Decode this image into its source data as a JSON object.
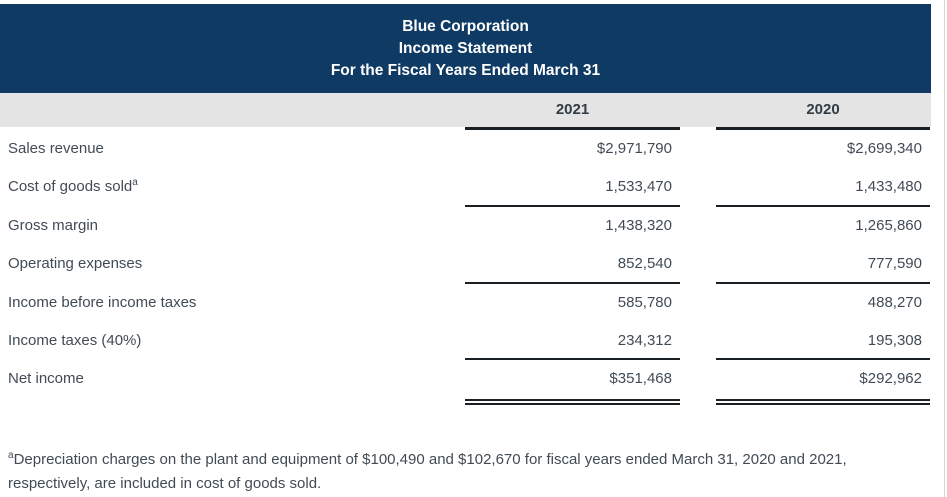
{
  "header": {
    "title_lines": [
      "Blue Corporation",
      "Income Statement",
      "For the Fiscal Years Ended March 31"
    ]
  },
  "table": {
    "columns": [
      "2021",
      "2020"
    ],
    "rows": [
      {
        "label": "Sales revenue",
        "y2021": "$2,971,790",
        "y2020": "$2,699,340"
      },
      {
        "label": "Cost of goods sold",
        "superscript": "a",
        "y2021": "1,533,470",
        "y2020": "1,433,480"
      },
      {
        "label": "Gross margin",
        "y2021": "1,438,320",
        "y2020": "1,265,860"
      },
      {
        "label": "Operating expenses",
        "y2021": "852,540",
        "y2020": "777,590"
      },
      {
        "label": "Income before income taxes",
        "y2021": "585,780",
        "y2020": "488,270"
      },
      {
        "label": "Income taxes (40%)",
        "y2021": "234,312",
        "y2020": "195,308"
      },
      {
        "label": "Net income",
        "y2021": "$351,468",
        "y2020": "$292,962"
      }
    ]
  },
  "footnote": {
    "superscript": "a",
    "text": "Depreciation charges on the plant and equipment of $100,490 and $102,670 for fiscal years ended March 31, 2020 and 2021, respectively, are included in cost of goods sold."
  },
  "colors": {
    "header_bg": "#0e3a64",
    "header_text": "#ffffff",
    "band_bg": "#e4e4e4",
    "body_text": "#414b55",
    "rule": "#1a1f24"
  }
}
